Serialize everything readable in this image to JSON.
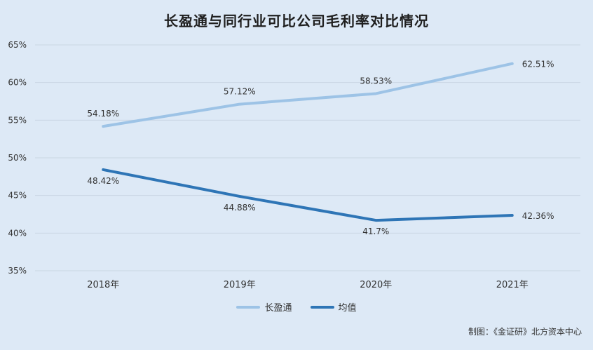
{
  "title": "长盈通与同行业可比公司毛利率对比情况",
  "source": "制图：《金证研》北方资本中心",
  "colors": {
    "series_company": "#9dc3e6",
    "series_average": "#2e75b6",
    "grid": "#c9d6e3",
    "background": "#dde9f6"
  },
  "chart_data": {
    "type": "line",
    "categories": [
      "2018年",
      "2019年",
      "2020年",
      "2021年"
    ],
    "series": [
      {
        "name": "长盈通",
        "values": [
          54.18,
          57.12,
          58.53,
          62.51
        ],
        "labels": [
          "54.18%",
          "57.12%",
          "58.53%",
          "62.51%"
        ]
      },
      {
        "name": "均值",
        "values": [
          48.42,
          44.88,
          41.7,
          42.36
        ],
        "labels": [
          "48.42%",
          "44.88%",
          "41.7%",
          "42.36%"
        ]
      }
    ],
    "yticks": [
      "35%",
      "40%",
      "45%",
      "50%",
      "55%",
      "60%",
      "65%"
    ],
    "ylim": [
      35,
      65
    ],
    "grid": true,
    "legend_position": "bottom"
  }
}
